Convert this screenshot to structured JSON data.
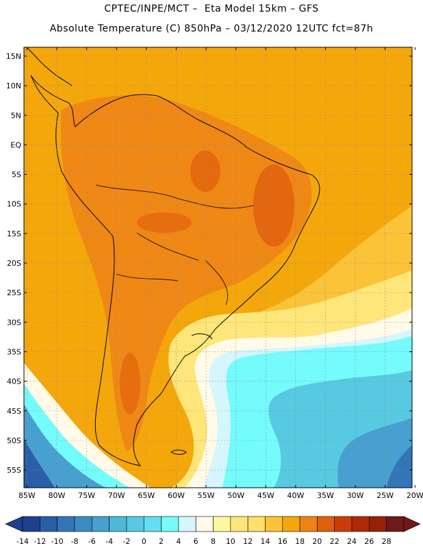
{
  "header": {
    "line1": "CPTEC/INPE/MCT –  Eta Model 15km – GFS",
    "line2": "Absolute Temperature (C) 850hPa – 03/12/2020 12UTC fct=87h"
  },
  "map": {
    "lat_labels": [
      "15N",
      "10N",
      "5N",
      "EQ",
      "5S",
      "10S",
      "15S",
      "20S",
      "25S",
      "30S",
      "35S",
      "40S",
      "45S",
      "50S",
      "55S"
    ],
    "lon_labels": [
      "85W",
      "80W",
      "75W",
      "70W",
      "65W",
      "60W",
      "55W",
      "50W",
      "45W",
      "40W",
      "35W",
      "30W",
      "25W",
      "20W"
    ],
    "lat_values": [
      15,
      10,
      5,
      0,
      -5,
      -10,
      -15,
      -20,
      -25,
      -30,
      -35,
      -40,
      -45,
      -50,
      -55
    ],
    "lon_values": [
      -85,
      -80,
      -75,
      -70,
      -65,
      -60,
      -55,
      -50,
      -45,
      -40,
      -35,
      -30,
      -25,
      -20
    ],
    "lat_range": [
      -58,
      16.5
    ],
    "lon_range": [
      -85.5,
      -20.5
    ],
    "grid": "dotted"
  },
  "legend": {
    "labels": [
      "-14",
      "-12",
      "-10",
      "-8",
      "-6",
      "-4",
      "-2",
      "0",
      "2",
      "4",
      "6",
      "8",
      "10",
      "12",
      "14",
      "16",
      "18",
      "20",
      "22",
      "24",
      "26",
      "28"
    ],
    "colors": [
      "#1f3f8f",
      "#2a5ea8",
      "#3475b8",
      "#3d8bc5",
      "#47a0cf",
      "#4fb8d8",
      "#57c9e0",
      "#64def0",
      "#74fbfc",
      "#d6f6fe",
      "#fffbe8",
      "#fdf8a0",
      "#fee67a",
      "#fde066",
      "#fbc338",
      "#f4a70b",
      "#ed8317",
      "#e15e0c",
      "#c93c08",
      "#ae2a08",
      "#962308",
      "#6e1a1a"
    ]
  }
}
